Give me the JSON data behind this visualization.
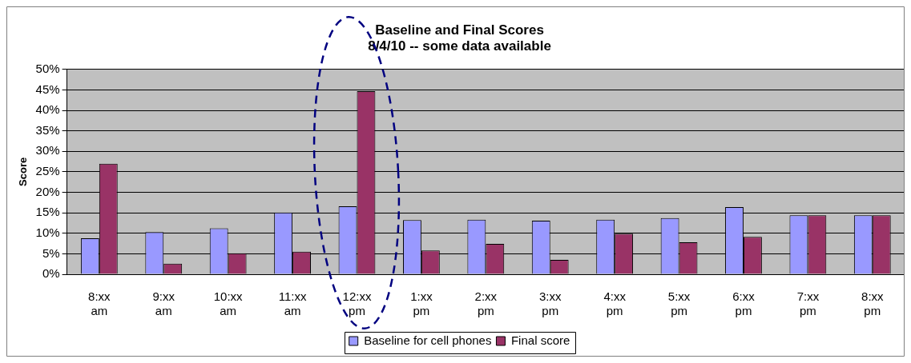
{
  "chart_data": {
    "type": "bar",
    "title": "Baseline and Final Scores",
    "subtitle": "8/4/10 -- some data available",
    "ylabel": "Score",
    "categories": [
      "8:xx am",
      "9:xx am",
      "10:xx am",
      "11:xx am",
      "12:xx pm",
      "1:xx pm",
      "2:xx pm",
      "3:xx pm",
      "4:xx pm",
      "5:xx pm",
      "6:xx pm",
      "7:xx pm",
      "8:xx pm"
    ],
    "series": [
      {
        "name": "Baseline for cell phones",
        "color": "#9999ff",
        "values": [
          8.8,
          10.3,
          11.2,
          15.1,
          16.6,
          13.2,
          13.3,
          13.1,
          13.3,
          13.7,
          16.4,
          14.4,
          14.4
        ]
      },
      {
        "name": "Final score",
        "color": "#993366",
        "values": [
          27.0,
          2.6,
          5.1,
          5.5,
          44.7,
          5.8,
          7.4,
          3.5,
          9.9,
          7.8,
          9.1,
          14.4,
          14.4
        ]
      }
    ],
    "ylim": [
      0,
      50
    ],
    "yticks": [
      {
        "value": 0,
        "label": "0%"
      },
      {
        "value": 5,
        "label": "5%"
      },
      {
        "value": 10,
        "label": "10%"
      },
      {
        "value": 15,
        "label": "15%"
      },
      {
        "value": 20,
        "label": "20%"
      },
      {
        "value": 25,
        "label": "25%"
      },
      {
        "value": 30,
        "label": "30%"
      },
      {
        "value": 35,
        "label": "35%"
      },
      {
        "value": 40,
        "label": "40%"
      },
      {
        "value": 45,
        "label": "45%"
      },
      {
        "value": 50,
        "label": "50%"
      }
    ],
    "grid": "y",
    "legend": "bottom"
  }
}
